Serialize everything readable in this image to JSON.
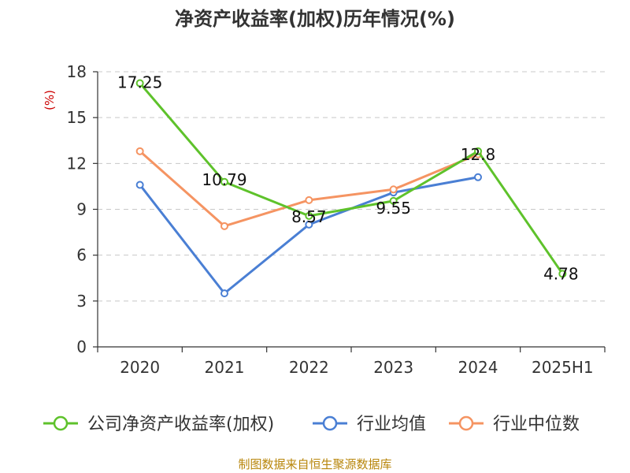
{
  "chart_data": {
    "type": "line",
    "title": "净资产收益率(加权)历年情况(%)",
    "ylabel": "(%)",
    "ylim": [
      0,
      18
    ],
    "yticks": [
      0,
      3,
      6,
      9,
      12,
      15,
      18
    ],
    "grid": true,
    "legend_position": "bottom",
    "categories": [
      "2020",
      "2021",
      "2022",
      "2023",
      "2024",
      "2025H1"
    ],
    "series": [
      {
        "name": "公司净资产收益率(加权)",
        "color": "#5ec22b",
        "values": [
          17.25,
          10.79,
          8.57,
          9.55,
          12.8,
          4.78
        ],
        "labels": [
          "17.25",
          "10.79",
          "8.57",
          "9.55",
          "12.8",
          "4.78"
        ]
      },
      {
        "name": "行业均值",
        "color": "#4a7fd4",
        "values": [
          10.6,
          3.5,
          8.0,
          10.1,
          11.1,
          null
        ]
      },
      {
        "name": "行业中位数",
        "color": "#f59462",
        "values": [
          12.8,
          7.9,
          9.6,
          10.3,
          12.6,
          null
        ]
      }
    ]
  },
  "footer": {
    "source": "制图数据来自恒生聚源数据库"
  }
}
